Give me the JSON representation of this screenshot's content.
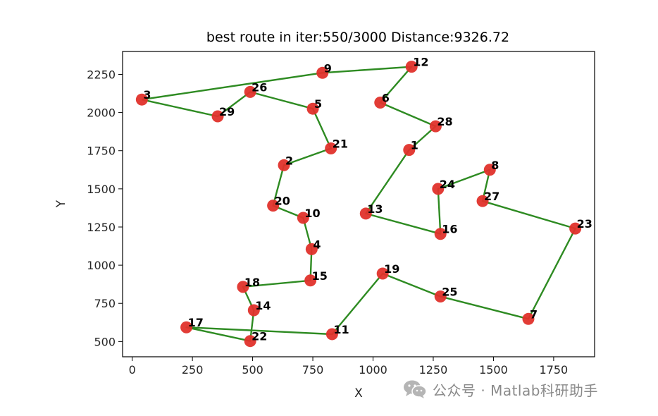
{
  "chart_data": {
    "type": "scatter",
    "title": "best route in iter:550/3000 Distance:9326.72",
    "xlabel": "X",
    "ylabel": "Y",
    "xlim": [
      -40,
      1920
    ],
    "ylim": [
      400,
      2400
    ],
    "xticks": [
      0,
      250,
      500,
      750,
      1000,
      1250,
      1500,
      1750
    ],
    "yticks": [
      500,
      750,
      1000,
      1250,
      1500,
      1750,
      2000,
      2250
    ],
    "grid": false,
    "legend": "none",
    "point_color": "#e0322b",
    "route_color": "#2e8b22",
    "points": [
      {
        "id": "1",
        "x": 1150,
        "y": 1755
      },
      {
        "id": "2",
        "x": 630,
        "y": 1655
      },
      {
        "id": "3",
        "x": 40,
        "y": 2085
      },
      {
        "id": "4",
        "x": 745,
        "y": 1105
      },
      {
        "id": "5",
        "x": 750,
        "y": 2025
      },
      {
        "id": "6",
        "x": 1030,
        "y": 2065
      },
      {
        "id": "7",
        "x": 1645,
        "y": 648
      },
      {
        "id": "8",
        "x": 1485,
        "y": 1625
      },
      {
        "id": "9",
        "x": 790,
        "y": 2260
      },
      {
        "id": "10",
        "x": 710,
        "y": 1310
      },
      {
        "id": "11",
        "x": 830,
        "y": 548
      },
      {
        "id": "12",
        "x": 1160,
        "y": 2300
      },
      {
        "id": "13",
        "x": 970,
        "y": 1338
      },
      {
        "id": "14",
        "x": 505,
        "y": 705
      },
      {
        "id": "15",
        "x": 740,
        "y": 900
      },
      {
        "id": "16",
        "x": 1280,
        "y": 1205
      },
      {
        "id": "17",
        "x": 225,
        "y": 593
      },
      {
        "id": "18",
        "x": 460,
        "y": 858
      },
      {
        "id": "19",
        "x": 1040,
        "y": 945
      },
      {
        "id": "20",
        "x": 585,
        "y": 1390
      },
      {
        "id": "21",
        "x": 825,
        "y": 1765
      },
      {
        "id": "22",
        "x": 490,
        "y": 503
      },
      {
        "id": "23",
        "x": 1840,
        "y": 1240
      },
      {
        "id": "24",
        "x": 1270,
        "y": 1500
      },
      {
        "id": "25",
        "x": 1280,
        "y": 795
      },
      {
        "id": "26",
        "x": 490,
        "y": 2135
      },
      {
        "id": "27",
        "x": 1455,
        "y": 1420
      },
      {
        "id": "28",
        "x": 1260,
        "y": 1910
      },
      {
        "id": "29",
        "x": 355,
        "y": 1975
      }
    ],
    "route": [
      "3",
      "29",
      "26",
      "5",
      "21",
      "2",
      "20",
      "10",
      "4",
      "15",
      "18",
      "14",
      "22",
      "17",
      "11",
      "19",
      "25",
      "7",
      "23",
      "27",
      "8",
      "24",
      "16",
      "13",
      "1",
      "28",
      "6",
      "12",
      "9",
      "3"
    ]
  },
  "watermark": {
    "text": "公众号 · Matlab科研助手",
    "icon": "wechat-icon"
  }
}
